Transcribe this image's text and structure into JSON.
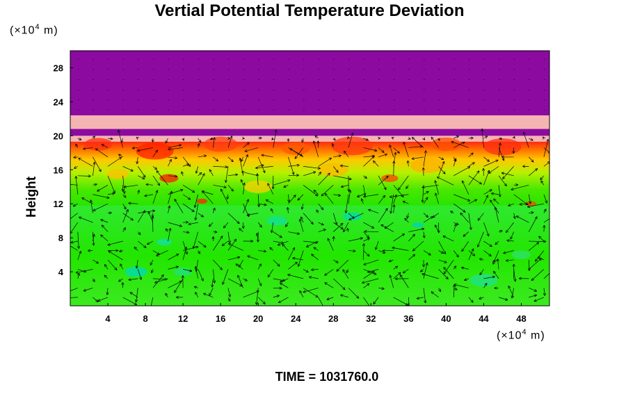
{
  "chart_data": {
    "type": "heatmap",
    "title": "Vertial Potential Temperature Deviation",
    "xlabel": "",
    "ylabel": "Height",
    "x_unit_label": "(×10",
    "x_unit_power": "4",
    "x_unit_tail": " m)",
    "y_unit_label": "(×10",
    "y_unit_power": "4",
    "y_unit_tail": " m)",
    "xlim": [
      0,
      51
    ],
    "ylim": [
      0,
      30
    ],
    "x_ticks": [
      4,
      8,
      12,
      16,
      20,
      24,
      28,
      32,
      36,
      40,
      44,
      48
    ],
    "y_ticks": [
      4,
      8,
      12,
      16,
      20,
      24,
      28
    ],
    "layers": [
      {
        "name": "upper",
        "y_range": [
          22.4,
          30
        ],
        "color": "#8c0aa0"
      },
      {
        "name": "band-pink-upper",
        "y_range": [
          20.8,
          22.4
        ],
        "color": "#f5b4b4"
      },
      {
        "name": "band-purple",
        "y_range": [
          20.0,
          20.8
        ],
        "color": "#8c0aa0"
      },
      {
        "name": "band-pink-lower",
        "y_range": [
          19.3,
          20.0
        ],
        "color": "#f5b4b4"
      },
      {
        "name": "upper-troposphere",
        "y_range": [
          11.8,
          19.3
        ],
        "colors": [
          "#e83020",
          "#ff8c00",
          "#ffd000",
          "#c8f000",
          "#40e800"
        ]
      },
      {
        "name": "lower-troposphere",
        "y_range": [
          0,
          11.8
        ],
        "colors": [
          "#22e600",
          "#2ce87a",
          "#00d8c0"
        ]
      }
    ],
    "vector_field": {
      "description": "wind vectors",
      "x_spacing": 1.6,
      "y_spacing": 1.1
    }
  },
  "footer": {
    "time_text": "TIME = 1031760.0"
  }
}
